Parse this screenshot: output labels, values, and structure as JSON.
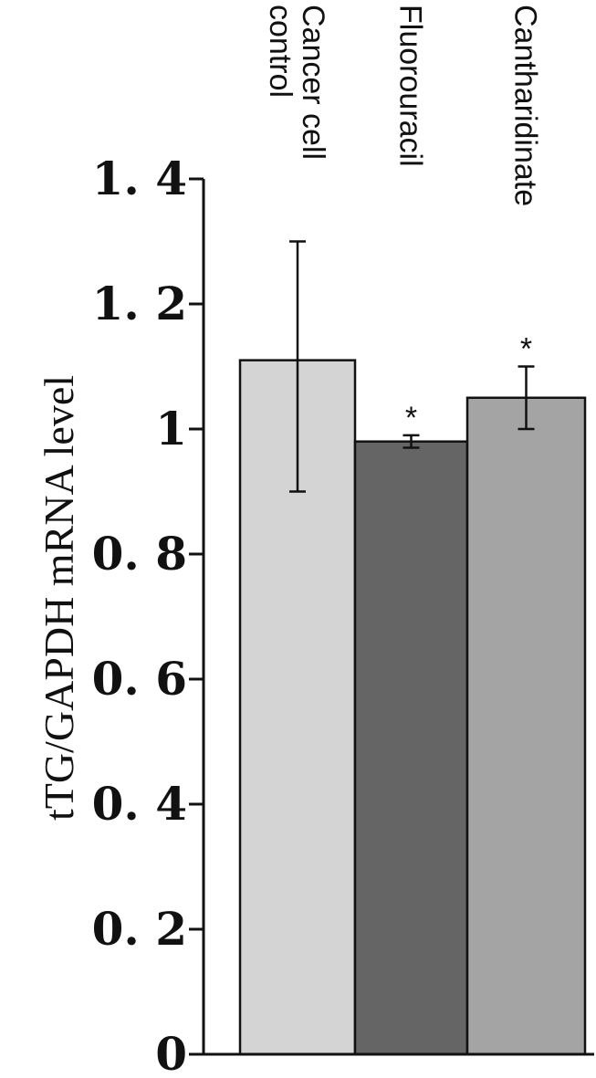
{
  "chart_data": {
    "type": "bar",
    "categories": [
      "Cancer cell control",
      "Fluorouracil",
      "Cantharidinate"
    ],
    "category_lines": [
      [
        "Cancer cell",
        "control"
      ],
      [
        "Fluorouracil"
      ],
      [
        "Cantharidinate"
      ]
    ],
    "values": [
      1.11,
      0.98,
      1.05
    ],
    "error_low": [
      0.9,
      0.97,
      1.0
    ],
    "error_high": [
      1.3,
      0.99,
      1.1
    ],
    "significance": [
      "",
      "*",
      "*"
    ],
    "bar_colors": [
      "#d4d4d4",
      "#656565",
      "#a4a4a4"
    ],
    "ylabel": "tTG/GAPDH mRNA level",
    "xlabel": "",
    "title": "",
    "ylim": [
      0,
      1.4
    ],
    "yticks": [
      0,
      0.2,
      0.4,
      0.6,
      0.8,
      1,
      1.2,
      1.4
    ],
    "ytick_labels": [
      "0",
      "0. 2",
      "0. 4",
      "0. 6",
      "0. 8",
      "1",
      "1. 2",
      "1. 4"
    ],
    "grid": false,
    "legend": "none"
  }
}
